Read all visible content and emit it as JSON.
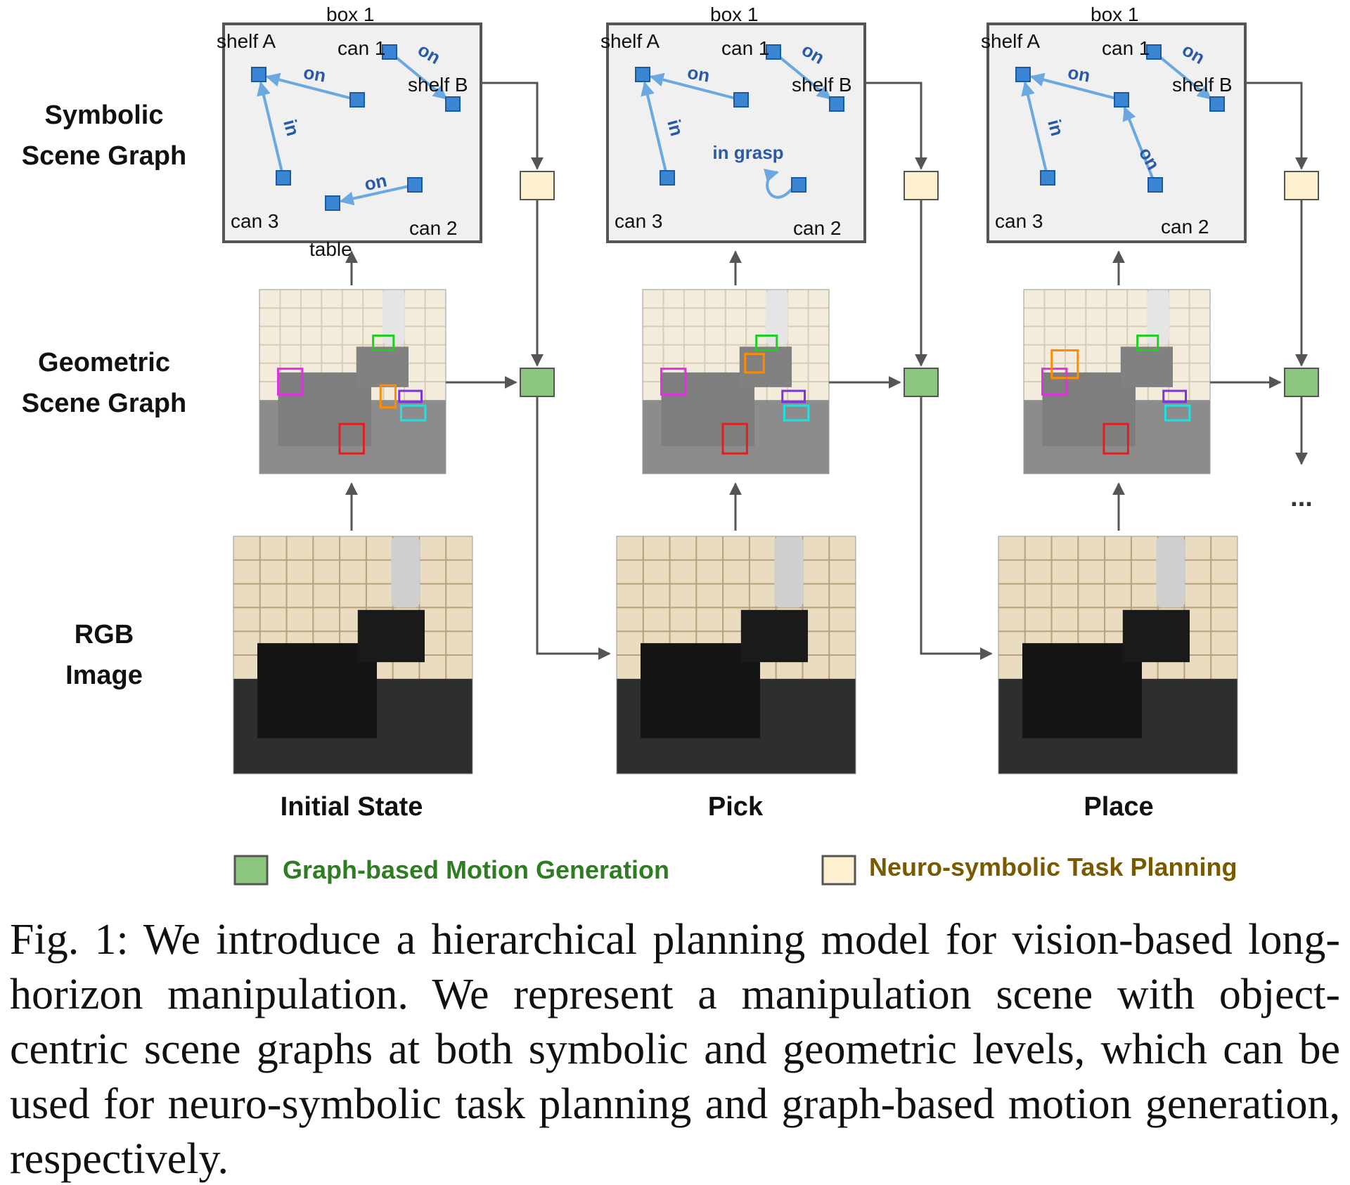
{
  "row_labels": {
    "symbolic": [
      "Symbolic",
      "Scene Graph"
    ],
    "geometric": [
      "Geometric",
      "Scene Graph"
    ],
    "rgb": [
      "RGB",
      "Image"
    ]
  },
  "stages": [
    {
      "label": "Initial State",
      "graph": {
        "nodes": {
          "shelfA": "shelf A",
          "box1": "box 1",
          "can1": "can 1",
          "shelfB": "shelf B",
          "can3": "can 3",
          "can2": "can 2",
          "table": "table"
        },
        "edges": {
          "can1_shelfA": "on",
          "box1_shelfB": "on",
          "can3_shelfA": "in",
          "can2_table": "on"
        }
      }
    },
    {
      "label": "Pick",
      "graph": {
        "nodes": {
          "shelfA": "shelf A",
          "box1": "box 1",
          "can1": "can 1",
          "shelfB": "shelf B",
          "can3": "can 3",
          "can2": "can 2"
        },
        "edges": {
          "can1_shelfA": "on",
          "box1_shelfB": "on",
          "can3_shelfA": "in",
          "can2_self": "in grasp"
        }
      }
    },
    {
      "label": "Place",
      "graph": {
        "nodes": {
          "shelfA": "shelf A",
          "box1": "box 1",
          "can1": "can 1",
          "shelfB": "shelf B",
          "can3": "can 3",
          "can2": "can 2"
        },
        "edges": {
          "can1_shelfA": "on",
          "box1_shelfB": "on",
          "can3_shelfA": "in",
          "can2_can1": "on"
        }
      }
    }
  ],
  "continuation": "...",
  "legend": {
    "motion": {
      "label": "Graph-based Motion Generation",
      "color": "#8cc67e",
      "text_color": "#2e7d22"
    },
    "task": {
      "label": "Neuro-symbolic Task Planning",
      "color": "#fdf0cf",
      "text_color": "#7a5a00"
    }
  },
  "caption": "Fig. 1: We introduce a hierarchical planning model for vision-based long-horizon manipulation. We represent a manipulation scene with object-centric scene graphs at both symbolic and geometric levels, which can be used for neuro-symbolic task planning and graph-based motion generation, respectively.",
  "colors": {
    "node": "#3a86d4",
    "edge": "#6aa8df",
    "edge_label": "#2a5aa6",
    "flow": "#555555"
  }
}
